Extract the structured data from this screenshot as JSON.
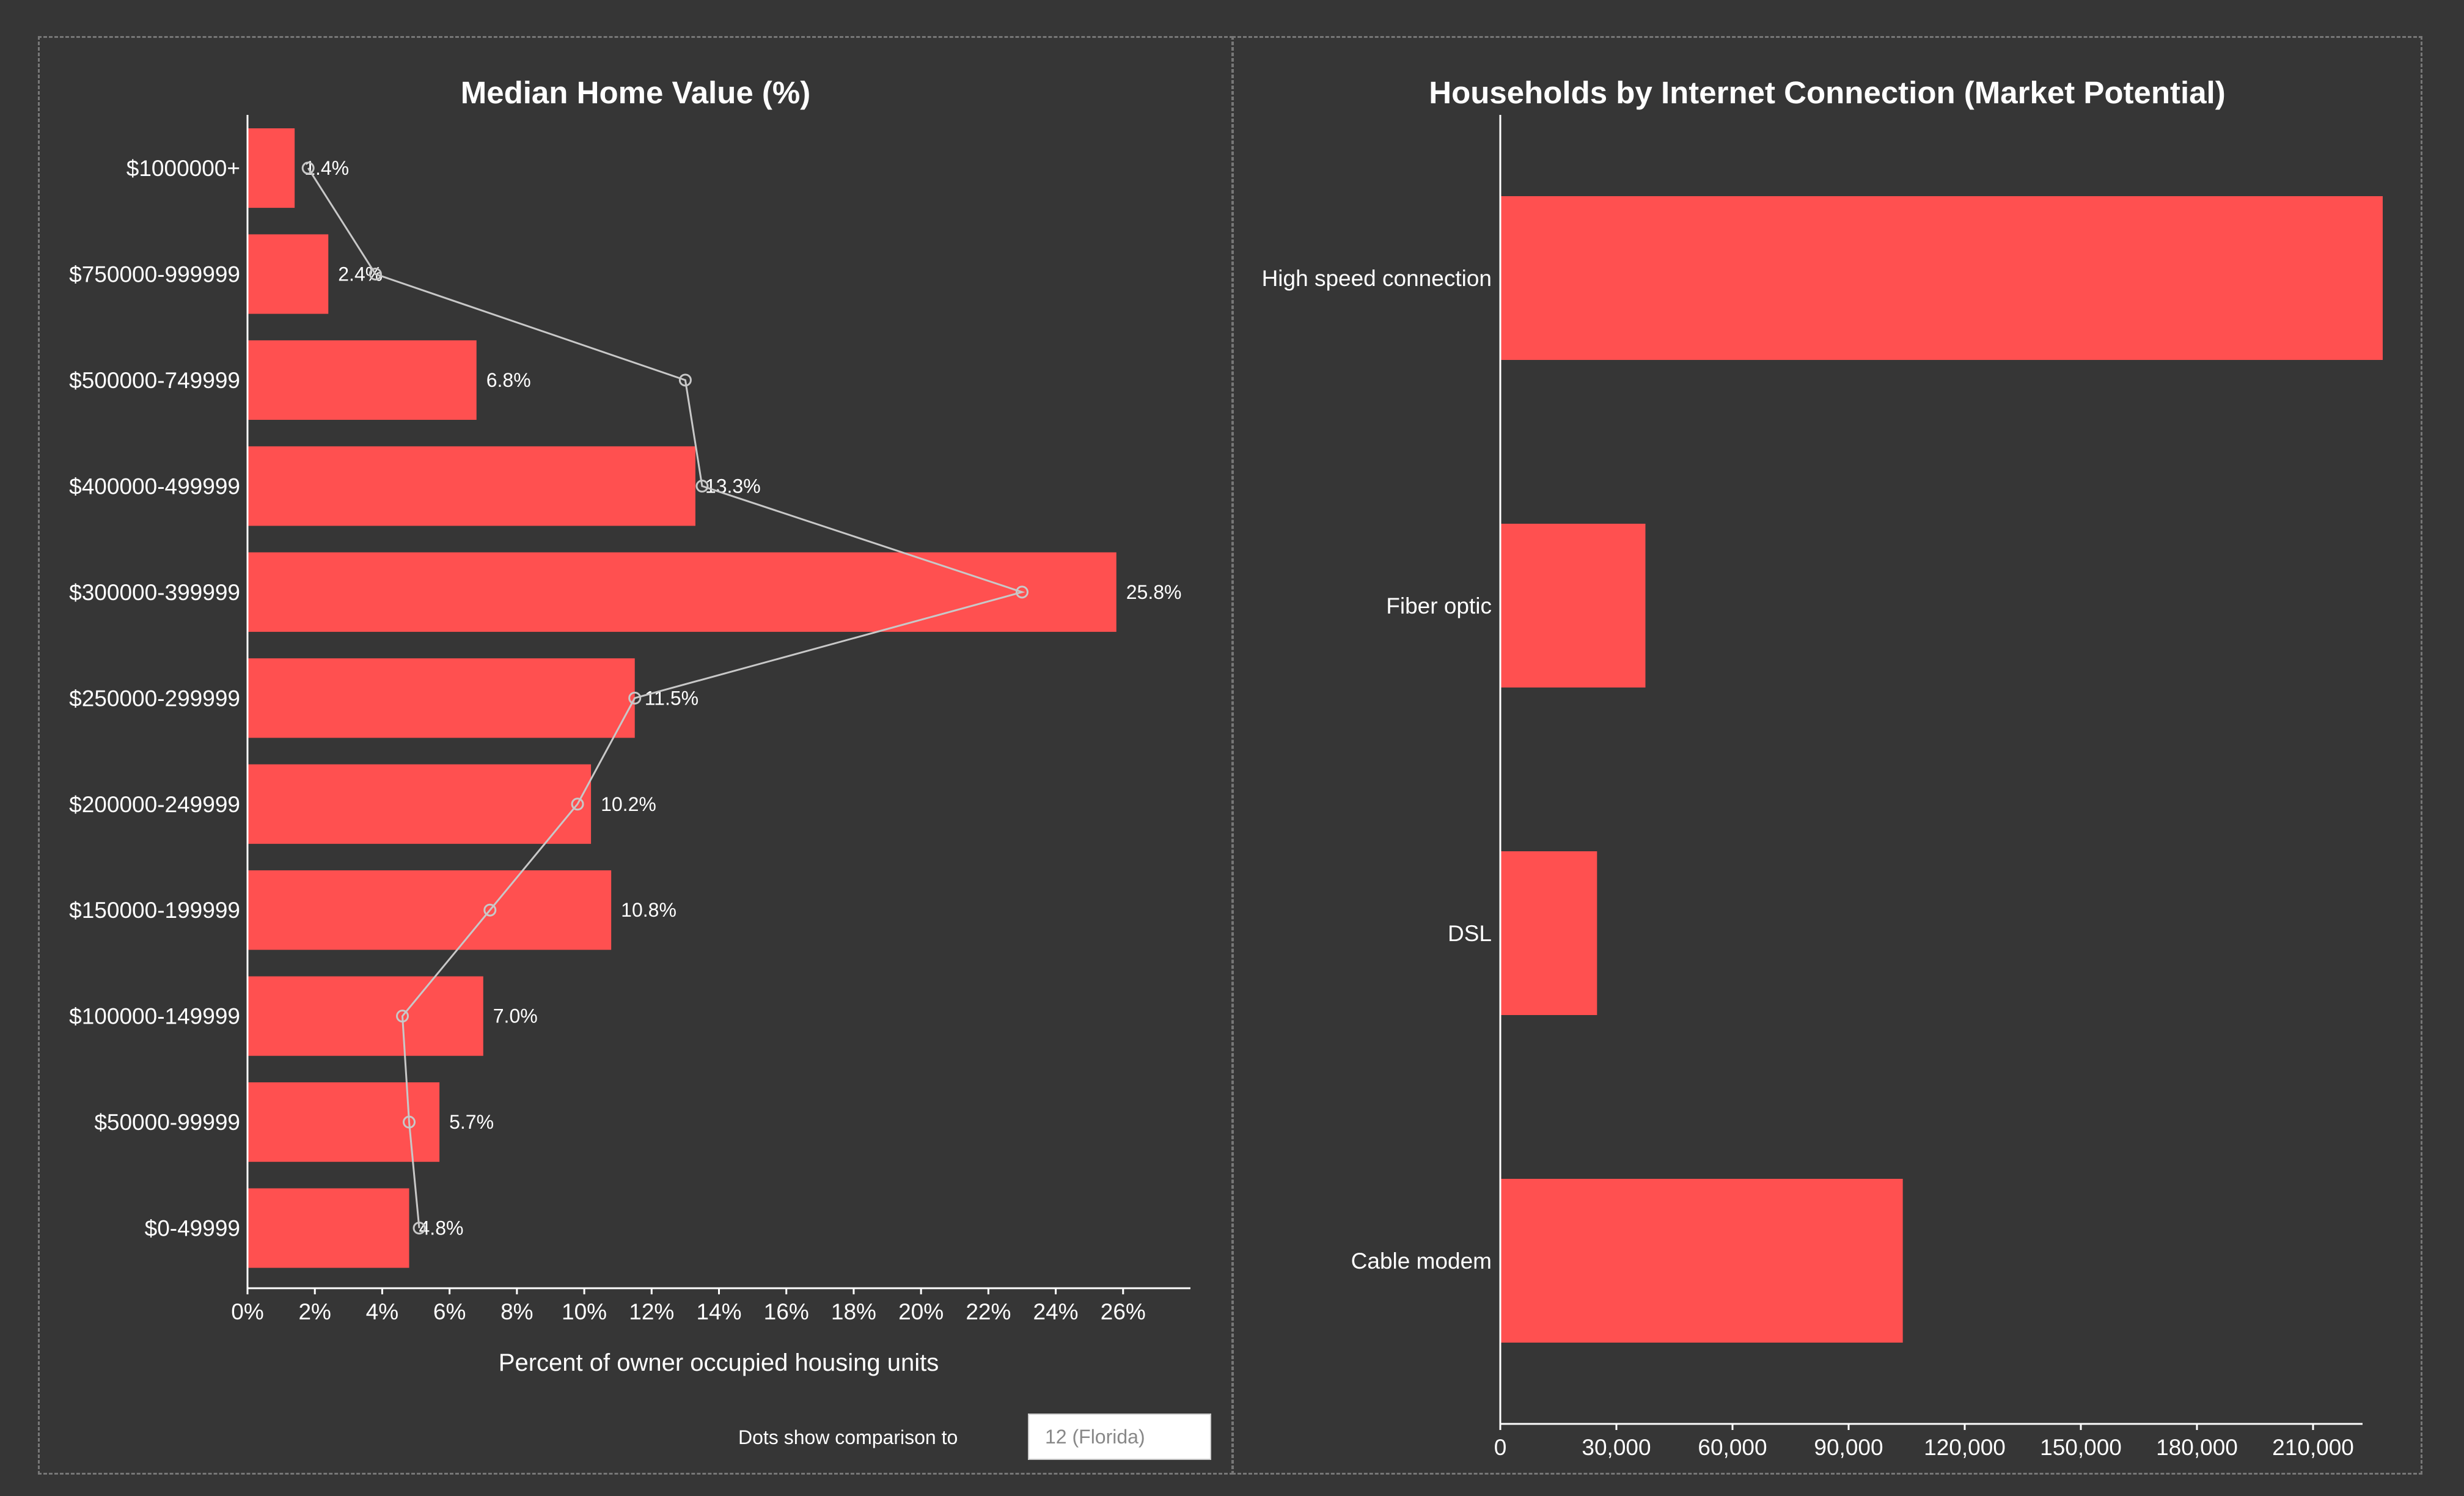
{
  "colors": {
    "bar": "#ff5050",
    "background": "#363636",
    "axis": "#ffffff",
    "comparison_line": "#c8c8c8"
  },
  "comparison": {
    "label": "Dots show comparison to",
    "value": "12 (Florida)"
  },
  "chart_data": [
    {
      "type": "bar",
      "orientation": "horizontal",
      "title": "Median Home Value (%)",
      "xlabel": "Percent of owner occupied housing units",
      "ylabel": "",
      "xlim": [
        0,
        28
      ],
      "x_ticks": [
        0,
        2,
        4,
        6,
        8,
        10,
        12,
        14,
        16,
        18,
        20,
        22,
        24,
        26
      ],
      "x_tick_labels": [
        "0%",
        "2%",
        "4%",
        "6%",
        "8%",
        "10%",
        "12%",
        "14%",
        "16%",
        "18%",
        "20%",
        "22%",
        "24%",
        "26%"
      ],
      "categories": [
        "$1000000+",
        "$750000-999999",
        "$500000-749999",
        "$400000-499999",
        "$300000-399999",
        "$250000-299999",
        "$200000-249999",
        "$150000-199999",
        "$100000-149999",
        "$50000-99999",
        "$0-49999"
      ],
      "values": [
        1.4,
        2.4,
        6.8,
        13.3,
        25.8,
        11.5,
        10.2,
        10.8,
        7.0,
        5.7,
        4.8
      ],
      "value_labels": [
        "1.4%",
        "2.4%",
        "6.8%",
        "13.3%",
        "25.8%",
        "11.5%",
        "10.2%",
        "10.8%",
        "7.0%",
        "5.7%",
        "4.8%"
      ],
      "comparison_values": [
        1.8,
        3.8,
        13.0,
        13.5,
        23.0,
        11.5,
        9.8,
        7.2,
        4.6,
        4.8,
        5.1
      ]
    },
    {
      "type": "bar",
      "orientation": "horizontal",
      "title": "Households by Internet Connection (Market Potential)",
      "xlabel": "",
      "ylabel": "",
      "xlim": [
        0,
        230000
      ],
      "x_ticks": [
        0,
        30000,
        60000,
        90000,
        120000,
        150000,
        180000,
        210000
      ],
      "x_tick_labels": [
        "0",
        "30,000",
        "60,000",
        "90,000",
        "120,000",
        "150,000",
        "180,000",
        "210,000"
      ],
      "categories": [
        "High speed connection",
        "Fiber optic",
        "DSL",
        "Cable modem"
      ],
      "values": [
        228000,
        37500,
        25000,
        104000
      ]
    }
  ]
}
